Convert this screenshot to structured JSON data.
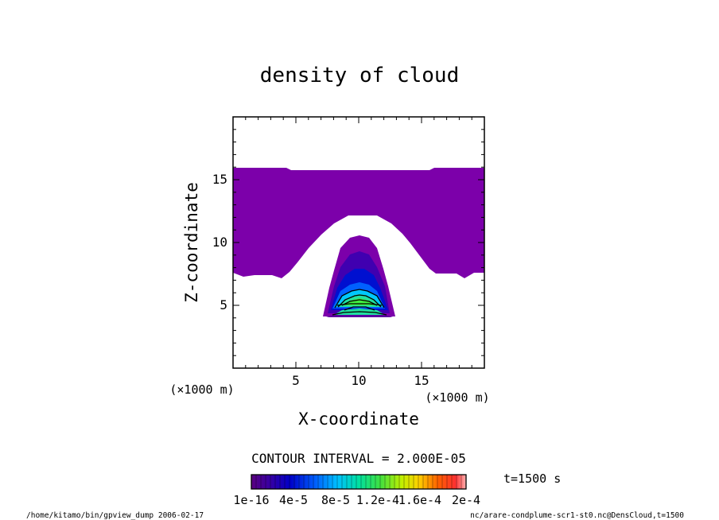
{
  "chart_data": {
    "type": "heatmap",
    "title": "density of cloud",
    "xlabel": "X-coordinate",
    "ylabel": "Z-coordinate",
    "x_unit_note": "(×1000 m)",
    "z_unit_note": "(×1000 m)",
    "xlim": [
      0,
      20
    ],
    "ylim": [
      0,
      20
    ],
    "x_ticks": [
      "5",
      "10",
      "15"
    ],
    "y_ticks": [
      "5",
      "10",
      "15"
    ],
    "x_tick_values": [
      5,
      10,
      15
    ],
    "y_tick_values": [
      5,
      10,
      15
    ],
    "contour_interval_label": "CONTOUR INTERVAL = 2.000E-05",
    "colorbar_labels": [
      "1e-16",
      "4e-5",
      "8e-5",
      "1.2e-4",
      "1.6e-4",
      "2e-4"
    ],
    "colorbar_range": [
      1e-16,
      0.00022
    ],
    "time_label": "t=1500 s",
    "regions": [
      {
        "name": "upper cloud layer",
        "x": [
          0,
          20
        ],
        "z": [
          7.2,
          15.8
        ],
        "level": 1e-16,
        "color": "#7a00a8"
      },
      {
        "name": "cloud-free arch",
        "x": [
          3.5,
          16.5
        ],
        "z": [
          0,
          12.2
        ],
        "level": 0,
        "color": "#ffffff"
      },
      {
        "name": "rising plume core",
        "x": [
          7.3,
          12.8
        ],
        "z": [
          3.9,
          10.5
        ],
        "peak": 0.00013,
        "peak_at": [
          10,
          5.2
        ]
      }
    ],
    "grid": false,
    "legend": "bottom"
  },
  "footer": {
    "left": "/home/kitamo/bin/gpview_dump  2006-02-17",
    "right": "nc/arare-condplume-scr1-st0.nc@DensCloud,t=1500"
  }
}
